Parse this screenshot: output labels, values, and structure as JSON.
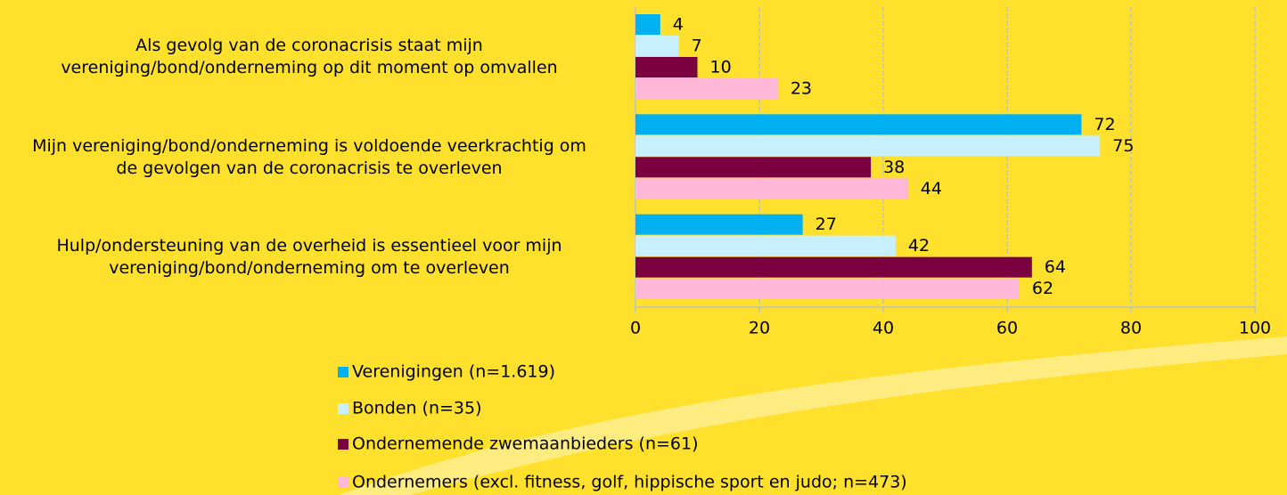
{
  "chart_data": {
    "type": "barh",
    "categories": [
      "Als gevolg van de coronacrisis staat mijn\nvereniging/bond/onderneming op dit moment op omvallen",
      "Mijn vereniging/bond/onderneming is voldoende veerkrachtig om\nde gevolgen van de coronacrisis te overleven",
      "Hulp/ondersteuning van de overheid is essentieel voor mijn\nvereniging/bond/onderneming om te overleven"
    ],
    "series": [
      {
        "name": "Verenigingen (n=1.619)",
        "color": "#00B0F0",
        "values": [
          4,
          72,
          27
        ]
      },
      {
        "name": "Bonden (n=35)",
        "color": "#C8EFFC",
        "values": [
          7,
          75,
          42
        ]
      },
      {
        "name": "Ondernemende zwemaanbieders (n=61)",
        "color": "#7A0040",
        "values": [
          10,
          38,
          64
        ]
      },
      {
        "name": "Ondernemers (excl. fitness, golf, hippische sport en judo; n=473)",
        "color": "#FFB7D8",
        "values": [
          23,
          44,
          62
        ]
      }
    ],
    "xlim": [
      0,
      100
    ],
    "xticks": [
      0,
      20,
      40,
      60,
      80,
      100
    ],
    "grid": true
  }
}
